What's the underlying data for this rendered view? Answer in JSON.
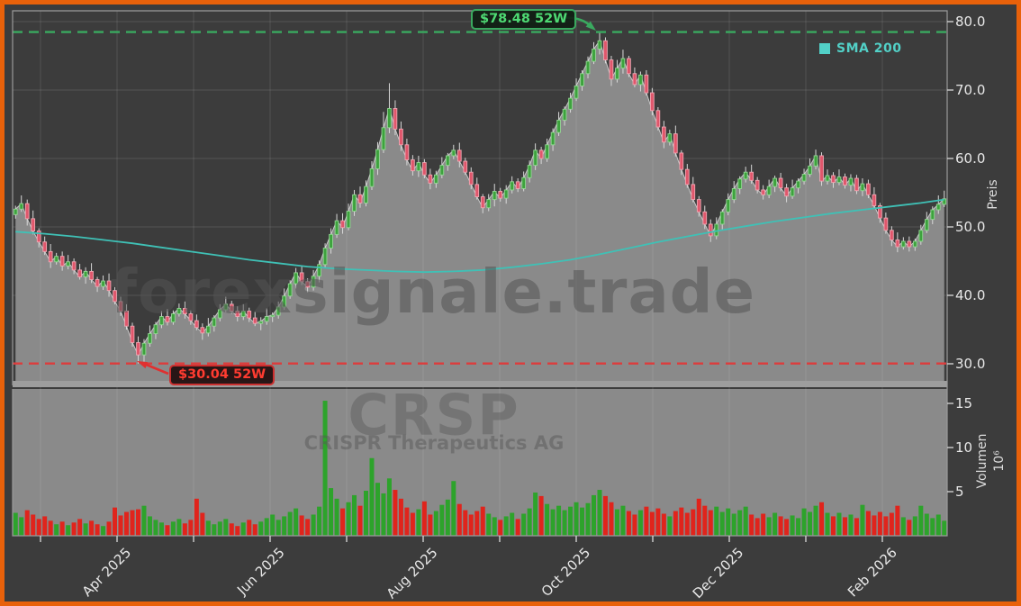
{
  "frame": {
    "border_color": "#e8610a",
    "background": "#3c3c3c"
  },
  "watermarks": {
    "main": "forexsignale.trade",
    "symbol": "CRSP",
    "company": "CRISPR Therapeutics AG"
  },
  "legend": {
    "sma_label": "SMA 200",
    "sma_color": "#52d0c7"
  },
  "annotations": {
    "high": {
      "label": "$78.48 52W",
      "value": 78.48,
      "text_color": "#4ed973",
      "line_color": "#3aa95f"
    },
    "low": {
      "label": "$30.04 52W",
      "value": 30.04,
      "text_color": "#ff3b30",
      "line_color": "#dd3c3c"
    }
  },
  "axes": {
    "price": {
      "title": "Preis",
      "ticks": [
        "80.0",
        "70.0",
        "60.0",
        "50.0",
        "40.0",
        "30.0"
      ],
      "tick_values": [
        80,
        70,
        60,
        50,
        40,
        30
      ]
    },
    "volume": {
      "title": "Volumen",
      "unit": "10⁶",
      "ticks": [
        "15",
        "10",
        "5"
      ],
      "tick_values": [
        15,
        10,
        5
      ]
    },
    "x": {
      "labels": [
        "",
        "Apr 2025",
        "",
        "Jun 2025",
        "",
        "Aug 2025",
        "",
        "Oct 2025",
        "",
        "Dec 2025",
        "",
        "Feb 2026"
      ]
    }
  },
  "colors": {
    "candle_up_fill": "#3da23d",
    "candle_up_edge": "#93d693",
    "candle_down_fill": "#e0566b",
    "candle_down_edge": "#f0a6b2",
    "wick": "#d8d8d8",
    "close_line": "#c9c9c9",
    "area_fill": "#8a8a8a",
    "volume_up": "#2da32b",
    "volume_down": "#e0241c",
    "sma_line": "#3fc1b6",
    "grid": "rgba(255,255,255,0.10)",
    "spine": "#9a9a9a"
  },
  "chart_data": {
    "type": "candlestick+volume",
    "symbol": "CRSP",
    "company": "CRISPR Therapeutics AG",
    "price_ylim": [
      26.8,
      81.6
    ],
    "volume_ylim": [
      0,
      16.6
    ],
    "volume_unit": "10^6",
    "high_52w": 78.48,
    "low_52w": 30.04,
    "x_range": [
      "Mar 2025",
      "Feb 2026"
    ],
    "candles_format": [
      "open",
      "high",
      "low",
      "close",
      "volume_millions"
    ],
    "candles": [
      [
        51.8,
        53.1,
        51.2,
        52.6,
        2.6
      ],
      [
        52.6,
        54.6,
        52.2,
        53.4,
        2.1
      ],
      [
        53.4,
        54.0,
        50.2,
        51.2,
        2.9
      ],
      [
        51.2,
        52.4,
        48.9,
        49.4,
        2.4
      ],
      [
        49.4,
        49.8,
        47.0,
        47.8,
        1.9
      ],
      [
        47.8,
        48.6,
        45.9,
        46.4,
        2.2
      ],
      [
        46.4,
        47.5,
        44.0,
        44.9,
        1.7
      ],
      [
        44.9,
        46.2,
        44.5,
        45.7,
        1.3
      ],
      [
        45.7,
        46.4,
        43.6,
        44.3,
        1.6
      ],
      [
        44.3,
        45.9,
        43.8,
        44.9,
        1.2
      ],
      [
        44.9,
        45.4,
        43.1,
        43.7,
        1.5
      ],
      [
        43.7,
        44.6,
        42.3,
        42.7,
        1.9
      ],
      [
        42.7,
        44.1,
        41.7,
        43.5,
        1.4
      ],
      [
        43.5,
        44.7,
        41.8,
        42.3,
        1.7
      ],
      [
        42.3,
        42.7,
        40.5,
        41.3,
        1.3
      ],
      [
        41.3,
        42.9,
        40.8,
        42.1,
        1.1
      ],
      [
        42.1,
        43.2,
        39.8,
        40.7,
        1.6
      ],
      [
        40.7,
        41.2,
        38.7,
        39.1,
        3.2
      ],
      [
        39.1,
        39.8,
        37.0,
        37.7,
        2.3
      ],
      [
        37.7,
        38.7,
        35.0,
        35.5,
        2.7
      ],
      [
        35.5,
        36.0,
        32.5,
        33.1,
        2.9
      ],
      [
        33.1,
        34.0,
        30.04,
        31.3,
        3.0
      ],
      [
        31.3,
        33.6,
        30.3,
        33.0,
        3.4
      ],
      [
        33.0,
        35.6,
        32.5,
        34.4,
        2.2
      ],
      [
        34.4,
        36.1,
        33.6,
        35.7,
        1.8
      ],
      [
        35.7,
        37.7,
        35.2,
        36.9,
        1.5
      ],
      [
        36.9,
        38.0,
        35.6,
        36.1,
        1.2
      ],
      [
        36.1,
        37.8,
        35.7,
        37.3,
        1.6
      ],
      [
        37.3,
        38.8,
        36.9,
        38.1,
        1.9
      ],
      [
        38.1,
        39.1,
        36.6,
        37.3,
        1.4
      ],
      [
        37.3,
        37.8,
        35.7,
        36.3,
        1.8
      ],
      [
        36.3,
        37.2,
        34.9,
        35.3,
        4.2
      ],
      [
        35.3,
        35.9,
        33.5,
        34.5,
        2.6
      ],
      [
        34.5,
        36.7,
        34.0,
        35.5,
        1.7
      ],
      [
        35.5,
        37.1,
        34.7,
        36.7,
        1.3
      ],
      [
        36.7,
        38.7,
        36.2,
        37.9,
        1.6
      ],
      [
        37.9,
        39.8,
        37.5,
        38.7,
        1.9
      ],
      [
        38.7,
        39.2,
        37.3,
        37.7,
        1.4
      ],
      [
        37.7,
        38.4,
        36.2,
        36.9,
        1.1
      ],
      [
        36.9,
        38.7,
        36.4,
        37.7,
        1.5
      ],
      [
        37.7,
        38.2,
        36.1,
        36.7,
        1.8
      ],
      [
        36.7,
        37.6,
        35.5,
        35.9,
        1.3
      ],
      [
        35.9,
        36.8,
        34.9,
        36.2,
        1.6
      ],
      [
        36.2,
        38.1,
        35.7,
        36.9,
        2.0
      ],
      [
        36.9,
        37.5,
        36.1,
        37.1,
        2.4
      ],
      [
        37.1,
        39.1,
        36.6,
        38.3,
        1.8
      ],
      [
        38.3,
        41.0,
        37.9,
        39.9,
        2.2
      ],
      [
        39.9,
        42.2,
        39.5,
        41.7,
        2.7
      ],
      [
        41.7,
        44.0,
        41.0,
        43.3,
        3.1
      ],
      [
        43.3,
        44.3,
        41.5,
        42.0,
        2.3
      ],
      [
        42.0,
        42.5,
        40.4,
        41.2,
        1.9
      ],
      [
        41.2,
        43.7,
        40.7,
        42.8,
        2.4
      ],
      [
        42.8,
        45.1,
        41.9,
        44.5,
        3.3
      ],
      [
        44.5,
        47.6,
        44.0,
        46.9,
        15.3
      ],
      [
        46.9,
        49.8,
        46.1,
        48.9,
        5.4
      ],
      [
        48.9,
        51.9,
        48.4,
        50.9,
        4.2
      ],
      [
        50.9,
        52.0,
        49.0,
        49.9,
        3.1
      ],
      [
        49.9,
        53.4,
        49.5,
        52.3,
        3.8
      ],
      [
        52.3,
        55.4,
        51.6,
        54.7,
        4.6
      ],
      [
        54.7,
        55.9,
        52.8,
        53.5,
        3.4
      ],
      [
        53.5,
        56.8,
        53.0,
        55.9,
        5.1
      ],
      [
        55.9,
        59.6,
        55.4,
        58.5,
        8.8
      ],
      [
        58.5,
        62.4,
        57.6,
        61.3,
        6.0
      ],
      [
        61.3,
        66.8,
        60.8,
        64.5,
        4.8
      ],
      [
        64.5,
        71.0,
        63.7,
        67.3,
        6.5
      ],
      [
        67.3,
        68.5,
        63.4,
        64.3,
        5.2
      ],
      [
        64.3,
        65.4,
        61.1,
        62.0,
        4.2
      ],
      [
        62.0,
        62.9,
        59.0,
        59.8,
        3.2
      ],
      [
        59.8,
        60.5,
        57.5,
        58.2,
        2.6
      ],
      [
        58.2,
        60.4,
        57.3,
        59.4,
        3.0
      ],
      [
        59.4,
        59.9,
        57.1,
        57.6,
        3.9
      ],
      [
        57.6,
        58.5,
        55.5,
        56.4,
        2.4
      ],
      [
        56.4,
        58.2,
        55.7,
        57.6,
        2.8
      ],
      [
        57.6,
        60.2,
        57.1,
        59.0,
        3.5
      ],
      [
        59.0,
        60.8,
        58.2,
        60.4,
        4.1
      ],
      [
        60.4,
        62.0,
        59.9,
        61.2,
        6.2
      ],
      [
        61.2,
        62.3,
        58.7,
        59.6,
        3.6
      ],
      [
        59.6,
        60.1,
        57.6,
        58.0,
        2.9
      ],
      [
        58.0,
        58.7,
        55.5,
        56.2,
        2.4
      ],
      [
        56.2,
        57.2,
        54.0,
        54.4,
        2.8
      ],
      [
        54.4,
        54.8,
        52.0,
        52.8,
        3.3
      ],
      [
        52.8,
        54.8,
        52.3,
        54.0,
        2.5
      ],
      [
        54.0,
        56.3,
        53.0,
        55.2,
        2.1
      ],
      [
        55.2,
        55.7,
        53.7,
        54.2,
        1.8
      ],
      [
        54.2,
        56.1,
        53.4,
        55.4,
        2.2
      ],
      [
        55.4,
        57.4,
        54.9,
        56.6,
        2.6
      ],
      [
        56.6,
        57.1,
        55.1,
        55.6,
        1.9
      ],
      [
        55.6,
        58.1,
        55.2,
        57.2,
        2.5
      ],
      [
        57.2,
        59.7,
        56.5,
        59.0,
        3.1
      ],
      [
        59.0,
        62.2,
        58.3,
        61.2,
        4.9
      ],
      [
        61.2,
        61.7,
        59.2,
        60.0,
        4.5
      ],
      [
        60.0,
        62.9,
        59.5,
        62.0,
        3.6
      ],
      [
        62.0,
        64.4,
        61.1,
        63.8,
        3.0
      ],
      [
        63.8,
        66.8,
        63.3,
        65.6,
        3.4
      ],
      [
        65.6,
        67.6,
        64.8,
        67.2,
        2.9
      ],
      [
        67.2,
        69.6,
        66.7,
        68.8,
        3.3
      ],
      [
        68.8,
        71.7,
        68.4,
        70.6,
        3.8
      ],
      [
        70.6,
        72.9,
        69.9,
        72.4,
        3.2
      ],
      [
        72.4,
        74.9,
        71.7,
        74.2,
        3.7
      ],
      [
        74.2,
        77.0,
        73.8,
        76.0,
        4.6
      ],
      [
        76.0,
        78.48,
        75.2,
        77.2,
        5.2
      ],
      [
        77.2,
        77.7,
        73.9,
        74.4,
        4.5
      ],
      [
        74.4,
        75.0,
        70.6,
        71.6,
        3.8
      ],
      [
        71.6,
        74.4,
        71.1,
        73.2,
        3.0
      ],
      [
        73.2,
        75.9,
        72.4,
        74.6,
        3.4
      ],
      [
        74.6,
        75.0,
        71.9,
        72.4,
        2.8
      ],
      [
        72.4,
        73.3,
        70.4,
        70.8,
        2.4
      ],
      [
        70.8,
        72.7,
        69.8,
        72.2,
        2.9
      ],
      [
        72.2,
        72.9,
        69.2,
        69.6,
        3.3
      ],
      [
        69.6,
        70.3,
        66.3,
        67.0,
        2.7
      ],
      [
        67.0,
        67.5,
        64.1,
        64.6,
        3.1
      ],
      [
        64.6,
        65.5,
        61.5,
        62.4,
        2.5
      ],
      [
        62.4,
        64.2,
        61.9,
        63.6,
        2.2
      ],
      [
        63.6,
        64.8,
        60.3,
        60.8,
        2.8
      ],
      [
        60.8,
        61.2,
        57.6,
        58.4,
        3.2
      ],
      [
        58.4,
        59.2,
        55.7,
        56.2,
        2.6
      ],
      [
        56.2,
        57.3,
        53.6,
        54.0,
        3.0
      ],
      [
        54.0,
        54.5,
        51.5,
        52.2,
        4.2
      ],
      [
        52.2,
        53.1,
        49.7,
        50.4,
        3.4
      ],
      [
        50.4,
        51.1,
        47.8,
        48.7,
        2.9
      ],
      [
        48.7,
        51.4,
        48.2,
        50.4,
        3.3
      ],
      [
        50.4,
        52.6,
        49.6,
        52.2,
        2.7
      ],
      [
        52.2,
        54.9,
        51.7,
        54.0,
        3.1
      ],
      [
        54.0,
        56.7,
        53.5,
        55.6,
        2.5
      ],
      [
        55.6,
        57.4,
        54.8,
        57.0,
        2.9
      ],
      [
        57.0,
        58.8,
        56.5,
        58.0,
        3.3
      ],
      [
        58.0,
        59.1,
        56.3,
        56.8,
        2.4
      ],
      [
        56.8,
        57.3,
        54.9,
        55.4,
        2.0
      ],
      [
        55.4,
        56.1,
        54.0,
        54.7,
        2.5
      ],
      [
        54.7,
        56.9,
        54.2,
        55.9,
        2.1
      ],
      [
        55.9,
        57.5,
        55.1,
        57.1,
        2.6
      ],
      [
        57.1,
        57.9,
        55.2,
        55.7,
        2.2
      ],
      [
        55.7,
        56.3,
        53.6,
        54.5,
        1.9
      ],
      [
        54.5,
        56.9,
        54.1,
        55.7,
        2.3
      ],
      [
        55.7,
        57.1,
        54.9,
        56.7,
        2.0
      ],
      [
        56.7,
        58.5,
        56.2,
        57.7,
        3.1
      ],
      [
        57.7,
        60.0,
        57.3,
        58.9,
        2.7
      ],
      [
        58.9,
        61.3,
        58.4,
        60.4,
        3.4
      ],
      [
        60.4,
        60.9,
        56.0,
        56.7,
        3.8
      ],
      [
        56.7,
        58.4,
        56.2,
        57.5,
        2.6
      ],
      [
        57.5,
        58.0,
        55.7,
        56.5,
        2.2
      ],
      [
        56.5,
        58.4,
        56.1,
        57.3,
        2.6
      ],
      [
        57.3,
        57.8,
        55.6,
        56.1,
        2.1
      ],
      [
        56.1,
        57.7,
        55.2,
        57.1,
        2.4
      ],
      [
        57.1,
        57.6,
        54.8,
        55.3,
        2.0
      ],
      [
        55.3,
        57.1,
        54.5,
        56.3,
        3.5
      ],
      [
        56.3,
        56.9,
        54.2,
        54.7,
        2.8
      ],
      [
        54.7,
        55.8,
        52.7,
        53.1,
        2.3
      ],
      [
        53.1,
        53.5,
        50.6,
        51.3,
        2.7
      ],
      [
        51.3,
        52.1,
        49.0,
        49.5,
        2.2
      ],
      [
        49.5,
        50.1,
        47.2,
        48.1,
        2.6
      ],
      [
        48.1,
        49.2,
        46.3,
        47.1,
        3.4
      ],
      [
        47.1,
        48.5,
        46.7,
        47.9,
        2.1
      ],
      [
        47.9,
        48.6,
        46.4,
        47.1,
        1.8
      ],
      [
        47.1,
        48.3,
        46.5,
        47.9,
        2.2
      ],
      [
        47.9,
        50.3,
        47.4,
        49.5,
        3.4
      ],
      [
        49.5,
        52.2,
        49.1,
        51.1,
        2.5
      ],
      [
        51.1,
        53.0,
        50.4,
        52.5,
        2.0
      ],
      [
        52.5,
        54.6,
        51.9,
        53.3,
        2.4
      ],
      [
        53.3,
        55.3,
        52.9,
        54.1,
        1.7
      ]
    ],
    "sma200": {
      "name": "SMA 200",
      "period": 200,
      "points": [
        [
          0,
          49.3
        ],
        [
          5,
          49.0
        ],
        [
          10,
          48.6
        ],
        [
          15,
          48.1
        ],
        [
          20,
          47.6
        ],
        [
          25,
          47.0
        ],
        [
          30,
          46.4
        ],
        [
          35,
          45.8
        ],
        [
          40,
          45.2
        ],
        [
          45,
          44.7
        ],
        [
          50,
          44.2
        ],
        [
          55,
          43.9
        ],
        [
          60,
          43.7
        ],
        [
          65,
          43.5
        ],
        [
          70,
          43.4
        ],
        [
          75,
          43.5
        ],
        [
          80,
          43.7
        ],
        [
          85,
          44.1
        ],
        [
          90,
          44.6
        ],
        [
          95,
          45.2
        ],
        [
          100,
          46.0
        ],
        [
          105,
          46.9
        ],
        [
          110,
          47.8
        ],
        [
          115,
          48.6
        ],
        [
          120,
          49.4
        ],
        [
          125,
          50.1
        ],
        [
          130,
          50.8
        ],
        [
          135,
          51.4
        ],
        [
          140,
          52.0
        ],
        [
          145,
          52.5
        ],
        [
          150,
          53.0
        ],
        [
          155,
          53.5
        ],
        [
          159,
          54.0
        ]
      ]
    }
  }
}
